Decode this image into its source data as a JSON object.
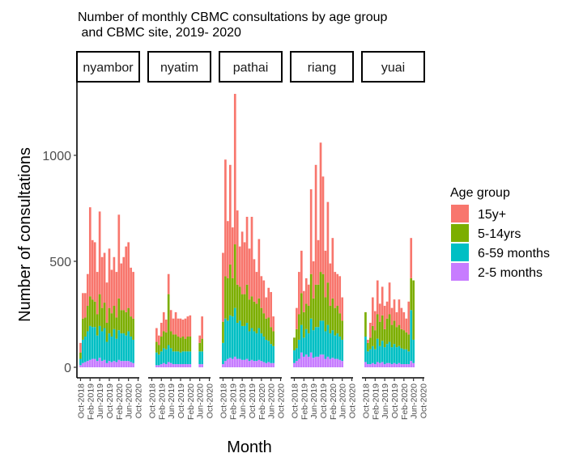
{
  "chart_data": {
    "type": "bar",
    "stacked": true,
    "faceted": true,
    "title": "Number of monthly CBMC consultations by age group\n and CBMC site, 2019- 2020",
    "xlabel": "Month",
    "ylabel": "Number of consultations",
    "ylim": [
      0,
      1320
    ],
    "yticks": [
      0,
      500,
      1000
    ],
    "ytick_labels": [
      "0",
      "500",
      "1000"
    ],
    "x_range": [
      "2018-09",
      "2020-10"
    ],
    "xticks": [
      "2018-10",
      "2019-02",
      "2019-06",
      "2019-10",
      "2020-02",
      "2020-06",
      "2020-10"
    ],
    "xtick_labels": [
      "Oct-2018",
      "Feb-2019",
      "Jun-2019",
      "Oct-2019",
      "Feb-2020",
      "Jun-2020",
      "Oct-2020"
    ],
    "grid": false,
    "legend": {
      "title": "Age group",
      "position": "right",
      "entries": [
        "15y+",
        "5-14yrs",
        "6-59 months",
        "2-5 months"
      ]
    },
    "colors": {
      "15y+": "#f8766d",
      "5-14yrs": "#7cae00",
      "6-59 months": "#00bfc4",
      "2-5 months": "#c77cff"
    },
    "series_order": [
      "2-5 months",
      "6-59 months",
      "5-14yrs",
      "15y+"
    ],
    "facets": [
      {
        "name": "nyambor",
        "bars": [
          {
            "month": "2018-10",
            "v": [
              10,
              30,
              30,
              45
            ]
          },
          {
            "month": "2018-11",
            "v": [
              20,
              110,
              100,
              120
            ]
          },
          {
            "month": "2018-12",
            "v": [
              25,
              120,
              90,
              115
            ]
          },
          {
            "month": "2019-01",
            "v": [
              30,
              140,
              120,
              150
            ]
          },
          {
            "month": "2019-02",
            "v": [
              35,
              160,
              140,
              420
            ]
          },
          {
            "month": "2019-03",
            "v": [
              40,
              150,
              130,
              280
            ]
          },
          {
            "month": "2019-04",
            "v": [
              40,
              150,
              120,
              280
            ]
          },
          {
            "month": "2019-05",
            "v": [
              30,
              120,
              100,
              200
            ]
          },
          {
            "month": "2019-06",
            "v": [
              45,
              150,
              150,
              390
            ]
          },
          {
            "month": "2019-07",
            "v": [
              30,
              140,
              110,
              240
            ]
          },
          {
            "month": "2019-08",
            "v": [
              35,
              150,
              120,
              235
            ]
          },
          {
            "month": "2019-09",
            "v": [
              20,
              100,
              90,
              190
            ]
          },
          {
            "month": "2019-10",
            "v": [
              30,
              130,
              120,
              280
            ]
          },
          {
            "month": "2019-11",
            "v": [
              25,
              120,
              110,
              205
            ]
          },
          {
            "month": "2019-12",
            "v": [
              30,
              150,
              110,
              230
            ]
          },
          {
            "month": "2020-01",
            "v": [
              25,
              110,
              100,
              215
            ]
          },
          {
            "month": "2020-02",
            "v": [
              35,
              140,
              150,
              395
            ]
          },
          {
            "month": "2020-03",
            "v": [
              30,
              130,
              110,
              220
            ]
          },
          {
            "month": "2020-04",
            "v": [
              30,
              130,
              110,
              250
            ]
          },
          {
            "month": "2020-05",
            "v": [
              30,
              120,
              110,
              310
            ]
          },
          {
            "month": "2020-06",
            "v": [
              30,
              140,
              110,
              310
            ]
          },
          {
            "month": "2020-07",
            "v": [
              25,
              120,
              95,
              230
            ]
          },
          {
            "month": "2020-08",
            "v": [
              20,
              110,
              100,
              220
            ]
          }
        ]
      },
      {
        "name": "nyatim",
        "bars": [
          {
            "month": "2018-12",
            "v": [
              10,
              60,
              50,
              65
            ]
          },
          {
            "month": "2019-01",
            "v": [
              10,
              50,
              45,
              45
            ]
          },
          {
            "month": "2019-02",
            "v": [
              15,
              60,
              70,
              65
            ]
          },
          {
            "month": "2019-03",
            "v": [
              20,
              70,
              80,
              90
            ]
          },
          {
            "month": "2019-04",
            "v": [
              15,
              70,
              80,
              60
            ]
          },
          {
            "month": "2019-05",
            "v": [
              25,
              80,
              240,
              95
            ]
          },
          {
            "month": "2019-06",
            "v": [
              20,
              70,
              80,
              100
            ]
          },
          {
            "month": "2019-07",
            "v": [
              15,
              60,
              80,
              75
            ]
          },
          {
            "month": "2019-08",
            "v": [
              15,
              60,
              80,
              105
            ]
          },
          {
            "month": "2019-09",
            "v": [
              15,
              60,
              70,
              85
            ]
          },
          {
            "month": "2019-10",
            "v": [
              15,
              55,
              70,
              90
            ]
          },
          {
            "month": "2019-11",
            "v": [
              15,
              60,
              70,
              80
            ]
          },
          {
            "month": "2019-12",
            "v": [
              15,
              60,
              60,
              95
            ]
          },
          {
            "month": "2020-01",
            "v": [
              15,
              60,
              70,
              95
            ]
          },
          {
            "month": "2020-02",
            "v": [
              15,
              60,
              70,
              100
            ]
          },
          {
            "month": "2020-06",
            "v": [
              15,
              60,
              40,
              35
            ]
          },
          {
            "month": "2020-07",
            "v": [
              15,
              60,
              60,
              105
            ]
          }
        ]
      },
      {
        "name": "pathai",
        "bars": [
          {
            "month": "2018-10",
            "v": [
              15,
              100,
              100,
              325
            ]
          },
          {
            "month": "2018-11",
            "v": [
              30,
              200,
              200,
              550
            ]
          },
          {
            "month": "2018-12",
            "v": [
              40,
              180,
              200,
              270
            ]
          },
          {
            "month": "2019-01",
            "v": [
              45,
              200,
              240,
              470
            ]
          },
          {
            "month": "2019-02",
            "v": [
              40,
              200,
              180,
              240
            ]
          },
          {
            "month": "2019-03",
            "v": [
              50,
              230,
              300,
              710
            ]
          },
          {
            "month": "2019-04",
            "v": [
              40,
              170,
              180,
              350
            ]
          },
          {
            "month": "2019-05",
            "v": [
              40,
              180,
              160,
              190
            ]
          },
          {
            "month": "2019-06",
            "v": [
              35,
              160,
              150,
              295
            ]
          },
          {
            "month": "2019-07",
            "v": [
              35,
              160,
              150,
              245
            ]
          },
          {
            "month": "2019-08",
            "v": [
              40,
              170,
              180,
              320
            ]
          },
          {
            "month": "2019-09",
            "v": [
              30,
              140,
              150,
              240
            ]
          },
          {
            "month": "2019-10",
            "v": [
              35,
              150,
              150,
              375
            ]
          },
          {
            "month": "2019-11",
            "v": [
              30,
              140,
              140,
              200
            ]
          },
          {
            "month": "2019-12",
            "v": [
              30,
              130,
              140,
              150
            ]
          },
          {
            "month": "2020-01",
            "v": [
              35,
              150,
              140,
              280
            ]
          },
          {
            "month": "2020-02",
            "v": [
              30,
              130,
              120,
              150
            ]
          },
          {
            "month": "2020-03",
            "v": [
              25,
              120,
              110,
              155
            ]
          },
          {
            "month": "2020-04",
            "v": [
              20,
              110,
              100,
              100
            ]
          },
          {
            "month": "2020-05",
            "v": [
              25,
              100,
              110,
              140
            ]
          },
          {
            "month": "2020-06",
            "v": [
              20,
              90,
              80,
              165
            ]
          },
          {
            "month": "2020-07",
            "v": [
              20,
              80,
              70,
              70
            ]
          }
        ]
      },
      {
        "name": "riang",
        "bars": [
          {
            "month": "2018-10",
            "v": [
              20,
              60,
              60,
              0
            ]
          },
          {
            "month": "2018-11",
            "v": [
              30,
              60,
              90,
              100
            ]
          },
          {
            "month": "2018-12",
            "v": [
              40,
              90,
              120,
              200
            ]
          },
          {
            "month": "2019-01",
            "v": [
              70,
              130,
              150,
              200
            ]
          },
          {
            "month": "2019-02",
            "v": [
              50,
              90,
              120,
              100
            ]
          },
          {
            "month": "2019-03",
            "v": [
              60,
              120,
              120,
              120
            ]
          },
          {
            "month": "2019-04",
            "v": [
              50,
              110,
              130,
              100
            ]
          },
          {
            "month": "2019-05",
            "v": [
              70,
              160,
              210,
              400
            ]
          },
          {
            "month": "2019-06",
            "v": [
              45,
              130,
              150,
              175
            ]
          },
          {
            "month": "2019-07",
            "v": [
              50,
              140,
              200,
              565
            ]
          },
          {
            "month": "2019-08",
            "v": [
              50,
              140,
              200,
              210
            ]
          },
          {
            "month": "2019-09",
            "v": [
              60,
              160,
              230,
              610
            ]
          },
          {
            "month": "2019-10",
            "v": [
              60,
              160,
              220,
              460
            ]
          },
          {
            "month": "2019-11",
            "v": [
              40,
              130,
              160,
              220
            ]
          },
          {
            "month": "2019-12",
            "v": [
              50,
              150,
              200,
              380
            ]
          },
          {
            "month": "2020-01",
            "v": [
              40,
              120,
              130,
              200
            ]
          },
          {
            "month": "2020-02",
            "v": [
              45,
              130,
              150,
              285
            ]
          },
          {
            "month": "2020-03",
            "v": [
              40,
              110,
              130,
              170
            ]
          },
          {
            "month": "2020-04",
            "v": [
              40,
              120,
              130,
              150
            ]
          },
          {
            "month": "2020-05",
            "v": [
              35,
              110,
              110,
              175
            ]
          },
          {
            "month": "2020-06",
            "v": [
              30,
              100,
              90,
              110
            ]
          }
        ]
      },
      {
        "name": "yuai",
        "bars": [
          {
            "month": "2018-10",
            "v": [
              25,
              120,
              115,
              0
            ]
          },
          {
            "month": "2018-11",
            "v": [
              15,
              60,
              40,
              15
            ]
          },
          {
            "month": "2018-12",
            "v": [
              15,
              70,
              55,
              70
            ]
          },
          {
            "month": "2019-01",
            "v": [
              20,
              80,
              95,
              135
            ]
          },
          {
            "month": "2019-02",
            "v": [
              15,
              70,
              90,
              90
            ]
          },
          {
            "month": "2019-03",
            "v": [
              25,
              110,
              115,
              160
            ]
          },
          {
            "month": "2019-04",
            "v": [
              20,
              80,
              115,
              85
            ]
          },
          {
            "month": "2019-05",
            "v": [
              25,
              100,
              120,
              135
            ]
          },
          {
            "month": "2019-06",
            "v": [
              15,
              80,
              85,
              110
            ]
          },
          {
            "month": "2019-07",
            "v": [
              20,
              90,
              120,
              80
            ]
          },
          {
            "month": "2019-08",
            "v": [
              20,
              100,
              130,
              150
            ]
          },
          {
            "month": "2019-09",
            "v": [
              15,
              80,
              105,
              80
            ]
          },
          {
            "month": "2019-10",
            "v": [
              20,
              90,
              110,
              100
            ]
          },
          {
            "month": "2019-11",
            "v": [
              15,
              80,
              95,
              70
            ]
          },
          {
            "month": "2019-12",
            "v": [
              20,
              80,
              100,
              120
            ]
          },
          {
            "month": "2020-01",
            "v": [
              15,
              75,
              90,
              100
            ]
          },
          {
            "month": "2020-02",
            "v": [
              15,
              70,
              90,
              85
            ]
          },
          {
            "month": "2020-03",
            "v": [
              15,
              70,
              80,
              65
            ]
          },
          {
            "month": "2020-04",
            "v": [
              15,
              60,
              80,
              155
            ]
          },
          {
            "month": "2020-05",
            "v": [
              30,
              240,
              150,
              190
            ]
          },
          {
            "month": "2020-06",
            "v": [
              20,
              110,
              280,
              0
            ]
          }
        ]
      }
    ]
  }
}
